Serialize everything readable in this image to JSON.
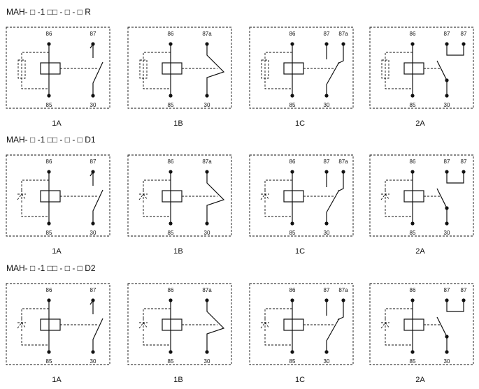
{
  "sections": [
    {
      "title": "MAH- □ -1 □□ - □ - □ R",
      "diagrams": [
        {
          "caption": "1A",
          "pins": [
            "86",
            "85",
            "87",
            "30"
          ]
        },
        {
          "caption": "1B",
          "pins": [
            "86",
            "85",
            "87a",
            "30"
          ]
        },
        {
          "caption": "1C",
          "pins": [
            "86",
            "85",
            "87",
            "87a",
            "30"
          ]
        },
        {
          "caption": "2A",
          "pins": [
            "86",
            "85",
            "87",
            "87",
            "30"
          ]
        }
      ]
    },
    {
      "title": "MAH- □ -1 □□ - □ - □ D1",
      "diagrams": [
        {
          "caption": "1A",
          "pins": [
            "86",
            "85",
            "87",
            "30"
          ]
        },
        {
          "caption": "1B",
          "pins": [
            "86",
            "85",
            "87a",
            "30"
          ]
        },
        {
          "caption": "1C",
          "pins": [
            "86",
            "85",
            "87",
            "87a",
            "30"
          ]
        },
        {
          "caption": "2A",
          "pins": [
            "86",
            "85",
            "87",
            "87",
            "30"
          ]
        }
      ]
    },
    {
      "title": "MAH- □ -1 □□ - □ - □ D2",
      "diagrams": [
        {
          "caption": "1A",
          "pins": [
            "86",
            "85",
            "87",
            "30"
          ]
        },
        {
          "caption": "1B",
          "pins": [
            "86",
            "85",
            "87a",
            "30"
          ]
        },
        {
          "caption": "1C",
          "pins": [
            "86",
            "85",
            "87",
            "87a",
            "30"
          ]
        },
        {
          "caption": "2A",
          "pins": [
            "86",
            "85",
            "87",
            "87",
            "30"
          ]
        }
      ]
    }
  ]
}
